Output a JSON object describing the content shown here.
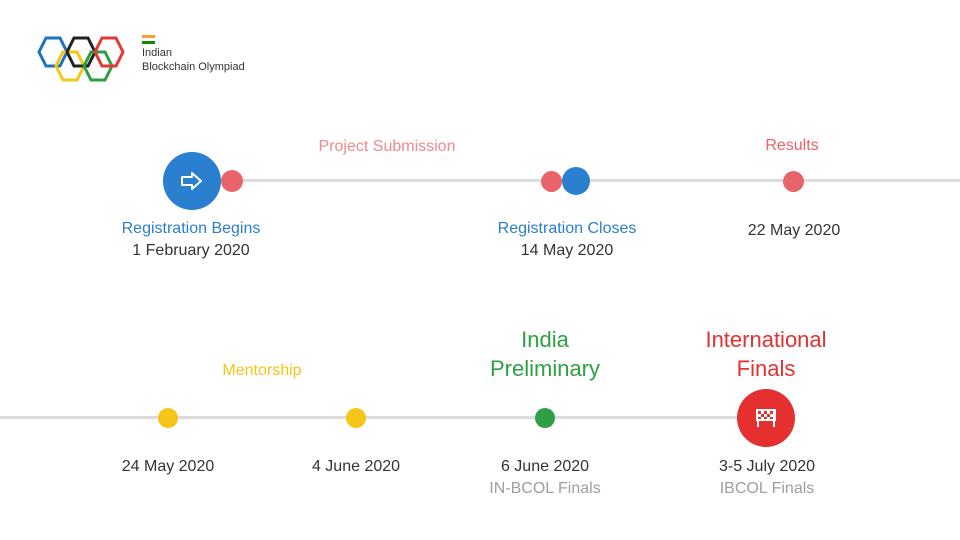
{
  "brand": {
    "line1": "Indian",
    "line2": "Blockchain Olympiad",
    "ring_colors": [
      "#1e73be",
      "#f5c518",
      "#222222",
      "#2e9e46",
      "#e53935"
    ],
    "flag_colors": [
      "#ff9933",
      "#ffffff",
      "#138808"
    ]
  },
  "colors": {
    "blue": "#2a7fcf",
    "red": "#e8646a",
    "yellow": "#f5c518",
    "green": "#2ea043",
    "crimson": "#e53030",
    "line": "#dcdcdc"
  },
  "timeline_top": {
    "project_submission": "Project Submission",
    "results": "Results",
    "registration_begins": {
      "title": "Registration Begins",
      "date": "1 February 2020",
      "icon": "arrow-right-icon"
    },
    "registration_closes": {
      "title": "Registration Closes",
      "date": "14 May 2020"
    },
    "results_date": "22 May 2020"
  },
  "timeline_bottom": {
    "mentorship": "Mentorship",
    "india_preliminary": {
      "line1": "India",
      "line2": "Preliminary",
      "date": "6 June 2020",
      "sub": "IN-BCOL Finals"
    },
    "international_finals": {
      "line1": "International",
      "line2": "Finals",
      "date": "3-5 July 2020",
      "sub": "IBCOL Finals",
      "icon": "checkered-flag-icon"
    },
    "date_1": "24 May 2020",
    "date_2": "4 June 2020"
  }
}
